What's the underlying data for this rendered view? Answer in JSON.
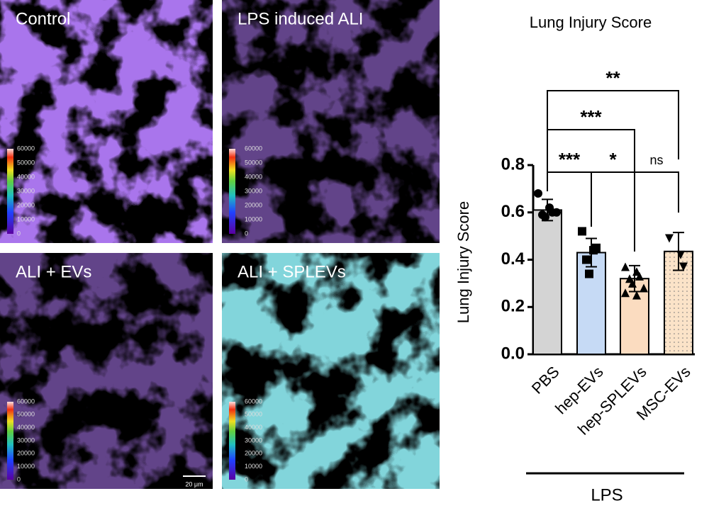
{
  "panels": [
    {
      "label": "Control"
    },
    {
      "label": "LPS induced ALI"
    },
    {
      "label": "ALI + EVs"
    },
    {
      "label": "ALI + SPLEVs"
    }
  ],
  "colorbar_ticks": [
    0,
    10000,
    20000,
    30000,
    40000,
    50000,
    60000
  ],
  "scale_bar": "20 μm",
  "chart_data": {
    "type": "bar",
    "title": "Lung Injury Score",
    "y_label": "Lung Injury Score",
    "categories": [
      "PBS",
      "hep-EVs",
      "hep-SPLEVs",
      "MSC-EVs"
    ],
    "values": [
      0.61,
      0.43,
      0.32,
      0.435
    ],
    "errors": [
      0.045,
      0.06,
      0.055,
      0.08
    ],
    "colors": [
      "#d4d4d4",
      "#c6daf5",
      "#fbdcc0",
      "#fbe3c8"
    ],
    "points": [
      [
        0.68,
        0.62,
        0.6,
        0.59,
        0.58,
        0.6
      ],
      [
        0.52,
        0.44,
        0.45,
        0.4,
        0.34
      ],
      [
        0.37,
        0.35,
        0.33,
        0.32,
        0.3,
        0.28,
        0.26,
        0.25
      ],
      [
        0.49,
        0.42,
        0.37
      ]
    ],
    "ylim": [
      0,
      0.8
    ],
    "yticks": [
      {
        "value": 0,
        "label": "0.0"
      },
      {
        "value": 0.2,
        "label": "0.2"
      },
      {
        "value": 0.4,
        "label": "0.4"
      },
      {
        "value": 0.6,
        "label": "0.6"
      },
      {
        "value": 0.8,
        "label": "0.8"
      }
    ],
    "group_label": "LPS",
    "annotations": [
      {
        "between": [
          "PBS",
          "hep-EVs"
        ],
        "label": "***"
      },
      {
        "between": [
          "hep-EVs",
          "hep-SPLEVs"
        ],
        "label": "*"
      },
      {
        "between": [
          "hep-SPLEVs",
          "MSC-EVs"
        ],
        "label": "ns"
      },
      {
        "between": [
          "PBS",
          "hep-SPLEVs"
        ],
        "label": "***"
      },
      {
        "between": [
          "PBS",
          "MSC-EVs"
        ],
        "label": "**"
      }
    ]
  }
}
